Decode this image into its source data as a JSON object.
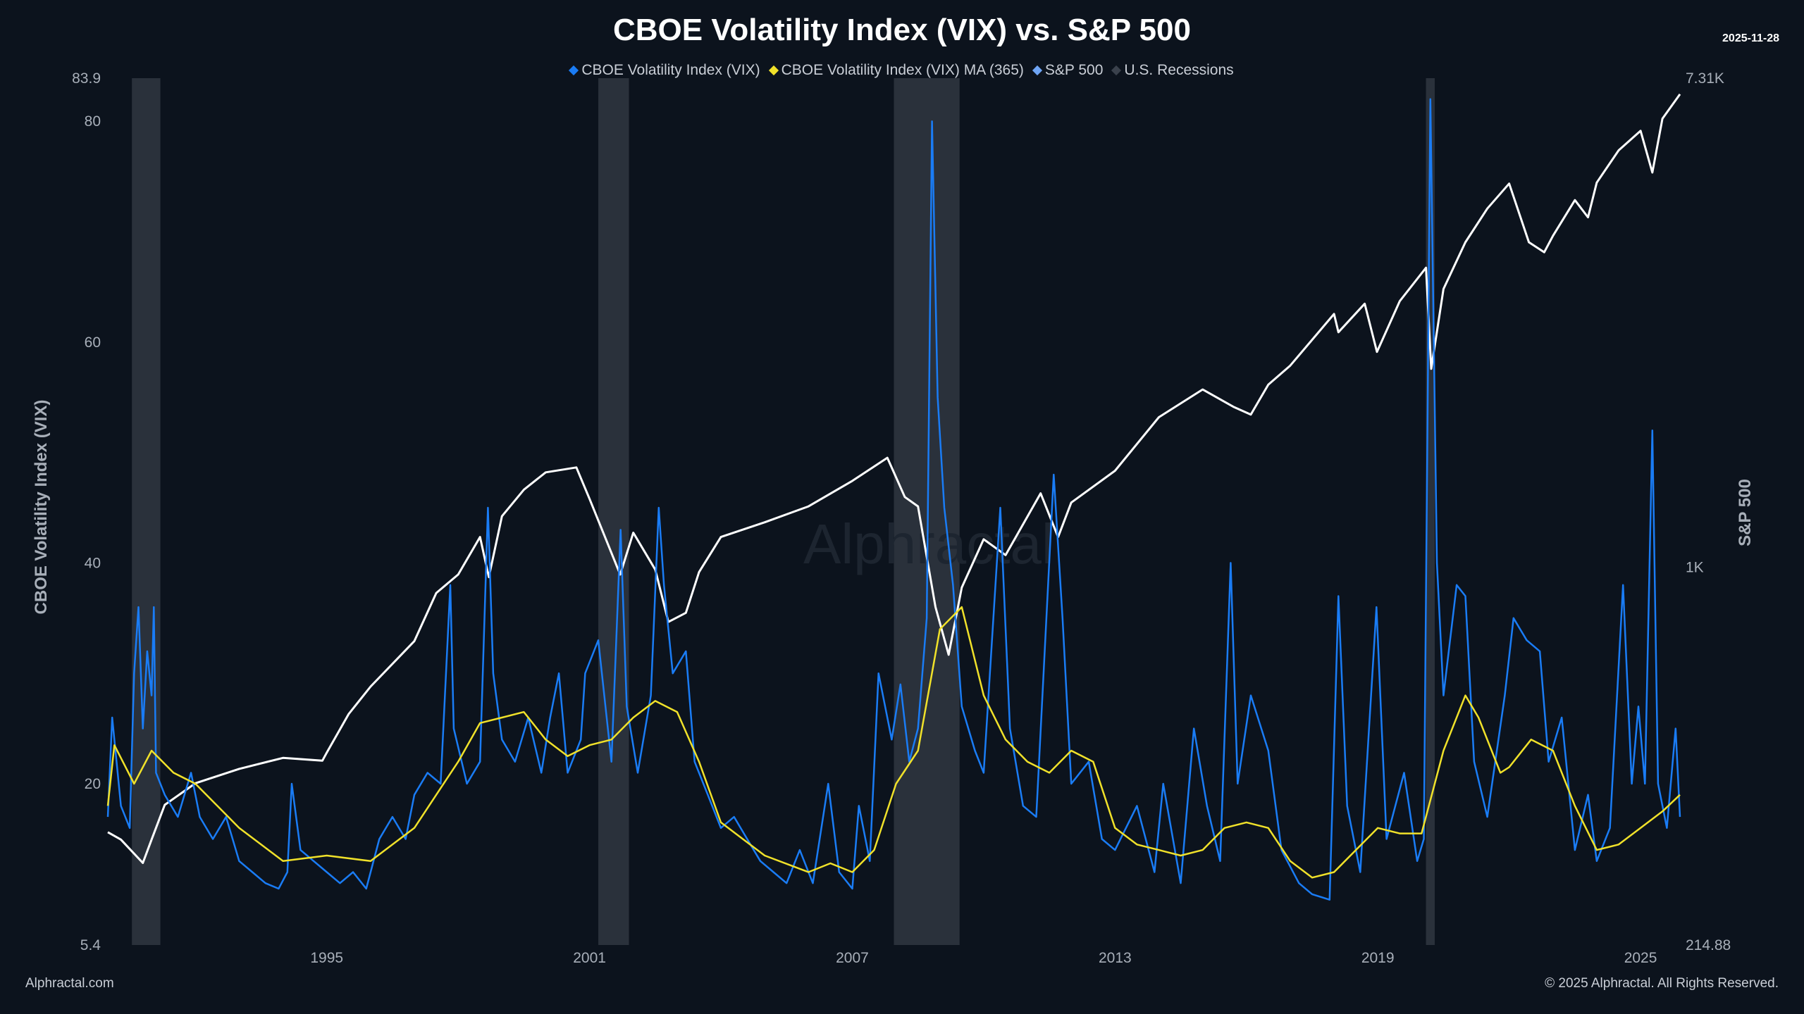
{
  "title": "CBOE Volatility Index (VIX) vs. S&P 500",
  "date": "2025-11-28",
  "watermark": "Alphractal",
  "footer_left": "Alphractal.com",
  "footer_right": "© 2025 Alphractal. All Rights Reserved.",
  "legend": [
    {
      "label": "CBOE Volatility Index (VIX)",
      "color": "#1a7cf5"
    },
    {
      "label": "CBOE Volatility Index (VIX) MA (365)",
      "color": "#f0e12a"
    },
    {
      "label": "S&P 500",
      "color": "#6fa5f5"
    },
    {
      "label": "U.S. Recessions",
      "color": "#3a414c"
    }
  ],
  "chart_data": {
    "type": "line",
    "title": "CBOE Volatility Index (VIX) vs. S&P 500",
    "ylabel": "CBOE Volatility Index (VIX)",
    "y2label": "S&P 500",
    "xlim": [
      1990,
      2025.9
    ],
    "ylim": [
      5.4,
      83.9
    ],
    "y2lim": [
      214.88,
      7310
    ],
    "y2scale": "log",
    "xticks": [
      "1995",
      "2001",
      "2007",
      "2013",
      "2019",
      "2025"
    ],
    "xtick_values": [
      1995,
      2001,
      2007,
      2013,
      2019,
      2025
    ],
    "yticks": [
      "5.4",
      "20",
      "40",
      "60",
      "80",
      "83.9"
    ],
    "ytick_values": [
      5.4,
      20,
      40,
      60,
      80,
      83.9
    ],
    "y2ticks": [
      "214.88",
      "1K",
      "7.31K"
    ],
    "y2tick_values": [
      214.88,
      1000,
      7310
    ],
    "grid": false,
    "legend_position": "top",
    "recessions": [
      [
        1990.55,
        1991.2
      ],
      [
        2001.2,
        2001.9
      ],
      [
        2007.95,
        2009.45
      ],
      [
        2020.1,
        2020.3
      ]
    ],
    "series": [
      {
        "name": "CBOE Volatility Index (VIX)",
        "color": "#1a7cf5",
        "points": [
          [
            1990,
            17
          ],
          [
            1990.1,
            26
          ],
          [
            1990.3,
            18
          ],
          [
            1990.5,
            16
          ],
          [
            1990.6,
            30
          ],
          [
            1990.7,
            36
          ],
          [
            1990.8,
            25
          ],
          [
            1990.9,
            32
          ],
          [
            1991.0,
            28
          ],
          [
            1991.05,
            36
          ],
          [
            1991.1,
            21
          ],
          [
            1991.3,
            19
          ],
          [
            1991.6,
            17
          ],
          [
            1991.9,
            21
          ],
          [
            1992.1,
            17
          ],
          [
            1992.4,
            15
          ],
          [
            1992.7,
            17
          ],
          [
            1993,
            13
          ],
          [
            1993.3,
            12
          ],
          [
            1993.6,
            11
          ],
          [
            1993.9,
            10.5
          ],
          [
            1994.1,
            12
          ],
          [
            1994.2,
            20
          ],
          [
            1994.4,
            14
          ],
          [
            1994.7,
            13
          ],
          [
            1995,
            12
          ],
          [
            1995.3,
            11
          ],
          [
            1995.6,
            12
          ],
          [
            1995.9,
            10.5
          ],
          [
            1996.2,
            15
          ],
          [
            1996.5,
            17
          ],
          [
            1996.8,
            15
          ],
          [
            1997,
            19
          ],
          [
            1997.3,
            21
          ],
          [
            1997.6,
            20
          ],
          [
            1997.82,
            38
          ],
          [
            1997.9,
            25
          ],
          [
            1998.2,
            20
          ],
          [
            1998.5,
            22
          ],
          [
            1998.68,
            45
          ],
          [
            1998.8,
            30
          ],
          [
            1999,
            24
          ],
          [
            1999.3,
            22
          ],
          [
            1999.6,
            26
          ],
          [
            1999.9,
            21
          ],
          [
            2000.1,
            26
          ],
          [
            2000.3,
            30
          ],
          [
            2000.5,
            21
          ],
          [
            2000.8,
            24
          ],
          [
            2000.9,
            30
          ],
          [
            2001.2,
            33
          ],
          [
            2001.5,
            22
          ],
          [
            2001.71,
            43
          ],
          [
            2001.85,
            27
          ],
          [
            2002.1,
            21
          ],
          [
            2002.4,
            28
          ],
          [
            2002.58,
            45
          ],
          [
            2002.7,
            38
          ],
          [
            2002.9,
            30
          ],
          [
            2003.2,
            32
          ],
          [
            2003.4,
            22
          ],
          [
            2003.7,
            19
          ],
          [
            2004,
            16
          ],
          [
            2004.3,
            17
          ],
          [
            2004.6,
            15
          ],
          [
            2004.9,
            13
          ],
          [
            2005.2,
            12
          ],
          [
            2005.5,
            11
          ],
          [
            2005.8,
            14
          ],
          [
            2006.1,
            11
          ],
          [
            2006.45,
            20
          ],
          [
            2006.7,
            12
          ],
          [
            2007,
            10.5
          ],
          [
            2007.15,
            18
          ],
          [
            2007.4,
            13
          ],
          [
            2007.6,
            30
          ],
          [
            2007.9,
            24
          ],
          [
            2008.1,
            29
          ],
          [
            2008.3,
            22
          ],
          [
            2008.5,
            25
          ],
          [
            2008.7,
            35
          ],
          [
            2008.82,
            80
          ],
          [
            2008.95,
            55
          ],
          [
            2009.1,
            45
          ],
          [
            2009.3,
            38
          ],
          [
            2009.5,
            27
          ],
          [
            2009.8,
            23
          ],
          [
            2010,
            21
          ],
          [
            2010.38,
            45
          ],
          [
            2010.6,
            25
          ],
          [
            2010.9,
            18
          ],
          [
            2011.2,
            17
          ],
          [
            2011.6,
            48
          ],
          [
            2011.8,
            35
          ],
          [
            2012,
            20
          ],
          [
            2012.4,
            22
          ],
          [
            2012.7,
            15
          ],
          [
            2013,
            14
          ],
          [
            2013.5,
            18
          ],
          [
            2013.9,
            12
          ],
          [
            2014.1,
            20
          ],
          [
            2014.5,
            11
          ],
          [
            2014.8,
            25
          ],
          [
            2015.1,
            18
          ],
          [
            2015.4,
            13
          ],
          [
            2015.64,
            40
          ],
          [
            2015.8,
            20
          ],
          [
            2016.1,
            28
          ],
          [
            2016.5,
            23
          ],
          [
            2016.8,
            14
          ],
          [
            2017.2,
            11
          ],
          [
            2017.5,
            10
          ],
          [
            2017.9,
            9.5
          ],
          [
            2018.1,
            37
          ],
          [
            2018.3,
            18
          ],
          [
            2018.6,
            12
          ],
          [
            2018.97,
            36
          ],
          [
            2019.2,
            15
          ],
          [
            2019.6,
            21
          ],
          [
            2019.9,
            13
          ],
          [
            2020.05,
            15
          ],
          [
            2020.2,
            82
          ],
          [
            2020.35,
            40
          ],
          [
            2020.5,
            28
          ],
          [
            2020.8,
            38
          ],
          [
            2021.0,
            37
          ],
          [
            2021.2,
            22
          ],
          [
            2021.5,
            17
          ],
          [
            2021.9,
            28
          ],
          [
            2022.1,
            35
          ],
          [
            2022.4,
            33
          ],
          [
            2022.7,
            32
          ],
          [
            2022.9,
            22
          ],
          [
            2023.2,
            26
          ],
          [
            2023.5,
            14
          ],
          [
            2023.8,
            19
          ],
          [
            2024,
            13
          ],
          [
            2024.3,
            16
          ],
          [
            2024.6,
            38
          ],
          [
            2024.8,
            20
          ],
          [
            2024.95,
            27
          ],
          [
            2025.1,
            20
          ],
          [
            2025.27,
            52
          ],
          [
            2025.4,
            20
          ],
          [
            2025.6,
            16
          ],
          [
            2025.8,
            25
          ],
          [
            2025.9,
            17
          ]
        ]
      },
      {
        "name": "CBOE Volatility Index (VIX) MA (365)",
        "color": "#f0e12a",
        "points": [
          [
            1990,
            18
          ],
          [
            1990.15,
            23.5
          ],
          [
            1990.6,
            20
          ],
          [
            1991,
            23
          ],
          [
            1991.5,
            21
          ],
          [
            1992,
            20
          ],
          [
            1992.5,
            18
          ],
          [
            1993,
            16
          ],
          [
            1994,
            13
          ],
          [
            1995,
            13.5
          ],
          [
            1996,
            13
          ],
          [
            1997,
            16
          ],
          [
            1997.5,
            19
          ],
          [
            1998,
            22
          ],
          [
            1998.5,
            25.5
          ],
          [
            1999,
            26
          ],
          [
            1999.5,
            26.5
          ],
          [
            2000,
            24
          ],
          [
            2000.5,
            22.5
          ],
          [
            2001,
            23.5
          ],
          [
            2001.5,
            24
          ],
          [
            2002,
            26
          ],
          [
            2002.5,
            27.5
          ],
          [
            2003,
            26.5
          ],
          [
            2003.5,
            22
          ],
          [
            2004,
            16.5
          ],
          [
            2004.5,
            15
          ],
          [
            2005,
            13.5
          ],
          [
            2006,
            12
          ],
          [
            2006.5,
            12.8
          ],
          [
            2007,
            12
          ],
          [
            2007.5,
            14
          ],
          [
            2008,
            20
          ],
          [
            2008.5,
            23
          ],
          [
            2009,
            34
          ],
          [
            2009.5,
            36
          ],
          [
            2010,
            28
          ],
          [
            2010.5,
            24
          ],
          [
            2011,
            22
          ],
          [
            2011.5,
            21
          ],
          [
            2012,
            23
          ],
          [
            2012.5,
            22
          ],
          [
            2013,
            16
          ],
          [
            2013.5,
            14.5
          ],
          [
            2014,
            14
          ],
          [
            2014.5,
            13.5
          ],
          [
            2015,
            14
          ],
          [
            2015.5,
            16
          ],
          [
            2016,
            16.5
          ],
          [
            2016.5,
            16
          ],
          [
            2017,
            13
          ],
          [
            2017.5,
            11.5
          ],
          [
            2018,
            12
          ],
          [
            2018.5,
            14
          ],
          [
            2019,
            16
          ],
          [
            2019.5,
            15.5
          ],
          [
            2020,
            15.5
          ],
          [
            2020.5,
            23
          ],
          [
            2021,
            28
          ],
          [
            2021.3,
            26
          ],
          [
            2021.8,
            21
          ],
          [
            2022,
            21.5
          ],
          [
            2022.5,
            24
          ],
          [
            2023,
            23
          ],
          [
            2023.5,
            18
          ],
          [
            2024,
            14
          ],
          [
            2024.5,
            14.5
          ],
          [
            2025,
            16
          ],
          [
            2025.5,
            17.5
          ],
          [
            2025.9,
            19
          ]
        ]
      },
      {
        "name": "S&P 500",
        "color": "#ffffff",
        "axis": "right",
        "points": [
          [
            1990,
            340
          ],
          [
            1990.3,
            330
          ],
          [
            1990.8,
            300
          ],
          [
            1991,
            330
          ],
          [
            1991.3,
            380
          ],
          [
            1992,
            415
          ],
          [
            1993,
            440
          ],
          [
            1994,
            460
          ],
          [
            1994.9,
            455
          ],
          [
            1995,
            470
          ],
          [
            1995.5,
            550
          ],
          [
            1996,
            615
          ],
          [
            1997,
            740
          ],
          [
            1997.5,
            900
          ],
          [
            1998,
            970
          ],
          [
            1998.5,
            1130
          ],
          [
            1998.7,
            960
          ],
          [
            1999,
            1230
          ],
          [
            1999.5,
            1370
          ],
          [
            2000,
            1470
          ],
          [
            2000.7,
            1500
          ],
          [
            2001,
            1320
          ],
          [
            2001.7,
            970
          ],
          [
            2002,
            1150
          ],
          [
            2002.5,
            990
          ],
          [
            2002.8,
            800
          ],
          [
            2003.2,
            830
          ],
          [
            2003.5,
            980
          ],
          [
            2004,
            1130
          ],
          [
            2005,
            1200
          ],
          [
            2006,
            1280
          ],
          [
            2007,
            1420
          ],
          [
            2007.8,
            1560
          ],
          [
            2008.2,
            1330
          ],
          [
            2008.5,
            1280
          ],
          [
            2008.9,
            850
          ],
          [
            2009.2,
            700
          ],
          [
            2009.5,
            920
          ],
          [
            2010,
            1120
          ],
          [
            2010.5,
            1050
          ],
          [
            2011.3,
            1350
          ],
          [
            2011.7,
            1130
          ],
          [
            2012,
            1300
          ],
          [
            2013,
            1480
          ],
          [
            2014,
            1840
          ],
          [
            2015,
            2060
          ],
          [
            2015.7,
            1920
          ],
          [
            2016.1,
            1860
          ],
          [
            2016.5,
            2100
          ],
          [
            2017,
            2270
          ],
          [
            2018,
            2800
          ],
          [
            2018.1,
            2600
          ],
          [
            2018.7,
            2920
          ],
          [
            2018.98,
            2400
          ],
          [
            2019.5,
            2950
          ],
          [
            2020.1,
            3380
          ],
          [
            2020.22,
            2240
          ],
          [
            2020.5,
            3100
          ],
          [
            2021,
            3750
          ],
          [
            2021.5,
            4300
          ],
          [
            2022,
            4760
          ],
          [
            2022.45,
            3750
          ],
          [
            2022.8,
            3600
          ],
          [
            2023,
            3850
          ],
          [
            2023.5,
            4450
          ],
          [
            2023.8,
            4150
          ],
          [
            2024,
            4780
          ],
          [
            2024.5,
            5450
          ],
          [
            2025,
            5900
          ],
          [
            2025.27,
            4980
          ],
          [
            2025.5,
            6200
          ],
          [
            2025.9,
            6850
          ]
        ]
      }
    ]
  }
}
